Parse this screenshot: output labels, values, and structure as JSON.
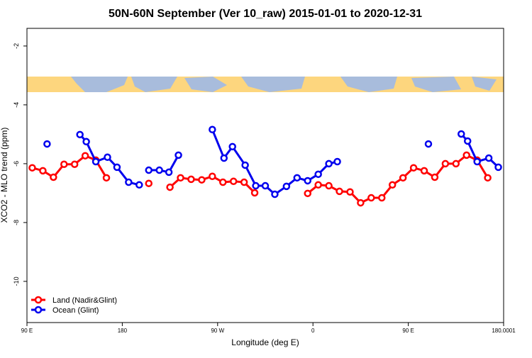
{
  "chart_data": {
    "type": "line",
    "title": "50N-60N September (Ver 10_raw)   2015-01-01 to 2020-12-31",
    "xlabel": "Longitude (deg E)",
    "ylabel": "XCO2 - MLO trend (ppm)",
    "xlim": [
      90,
      540
    ],
    "ylim": [
      -11.4,
      -1.4
    ],
    "xticks": [
      {
        "value": 90,
        "label": "90 E"
      },
      180,
      {
        "value": 270,
        "label": "90 W"
      },
      {
        "value": 360,
        "label": "0"
      },
      {
        "value": 450,
        "label": "90 E"
      },
      180.0001
    ],
    "yticks": [
      -2,
      -4,
      -6,
      -8,
      -10
    ],
    "legend": "bottom-left",
    "series": [
      {
        "name": "Land (Nadir&Glint)",
        "color": "#ff0000",
        "x": [
          95,
          105,
          115,
          125,
          135,
          145,
          155,
          165,
          175,
          185,
          195,
          205,
          215,
          225,
          235,
          245,
          255,
          265,
          275,
          285,
          295,
          305,
          315,
          325,
          335,
          345,
          355,
          365,
          375,
          385,
          395,
          405,
          415,
          425,
          435,
          445,
          455,
          465,
          475,
          485,
          495,
          505,
          515,
          525
        ],
        "values": [
          -6.14,
          -6.24,
          -6.46,
          -6.02,
          -6.02,
          -5.73,
          -5.88,
          -6.48,
          null,
          null,
          null,
          -6.67,
          null,
          -6.8,
          -6.48,
          -6.53,
          -6.55,
          -6.43,
          -6.63,
          -6.6,
          -6.63,
          -6.99,
          null,
          null,
          null,
          null,
          -7.01,
          -6.72,
          -6.75,
          -6.94,
          -6.96,
          -7.33,
          -7.16,
          -7.16,
          -6.72,
          -6.48,
          -6.14,
          -6.24,
          -6.46,
          -6.0,
          -6.0,
          -5.71,
          -5.88,
          -6.48
        ]
      },
      {
        "name": "Ocean (Glint)",
        "color": "#0000ee",
        "x": [
          109,
          null,
          140,
          146,
          155,
          166,
          175,
          186,
          196,
          null,
          205,
          215,
          224,
          233,
          null,
          265,
          276,
          284,
          296,
          306,
          315,
          324,
          335,
          345,
          355,
          365,
          375,
          383,
          null,
          469,
          null,
          500,
          506,
          515,
          526,
          535
        ],
        "values": [
          -5.33,
          null,
          -5.01,
          -5.25,
          -5.93,
          -5.78,
          -6.12,
          -6.63,
          -6.72,
          null,
          -6.22,
          -6.22,
          -6.29,
          -5.71,
          null,
          -4.84,
          -5.81,
          -5.42,
          -6.05,
          -6.75,
          -6.75,
          -7.04,
          -6.77,
          -6.48,
          -6.58,
          -6.36,
          -6.0,
          -5.93,
          null,
          -5.33,
          null,
          -4.99,
          -5.23,
          -5.93,
          -5.81,
          -6.12
        ]
      }
    ]
  }
}
